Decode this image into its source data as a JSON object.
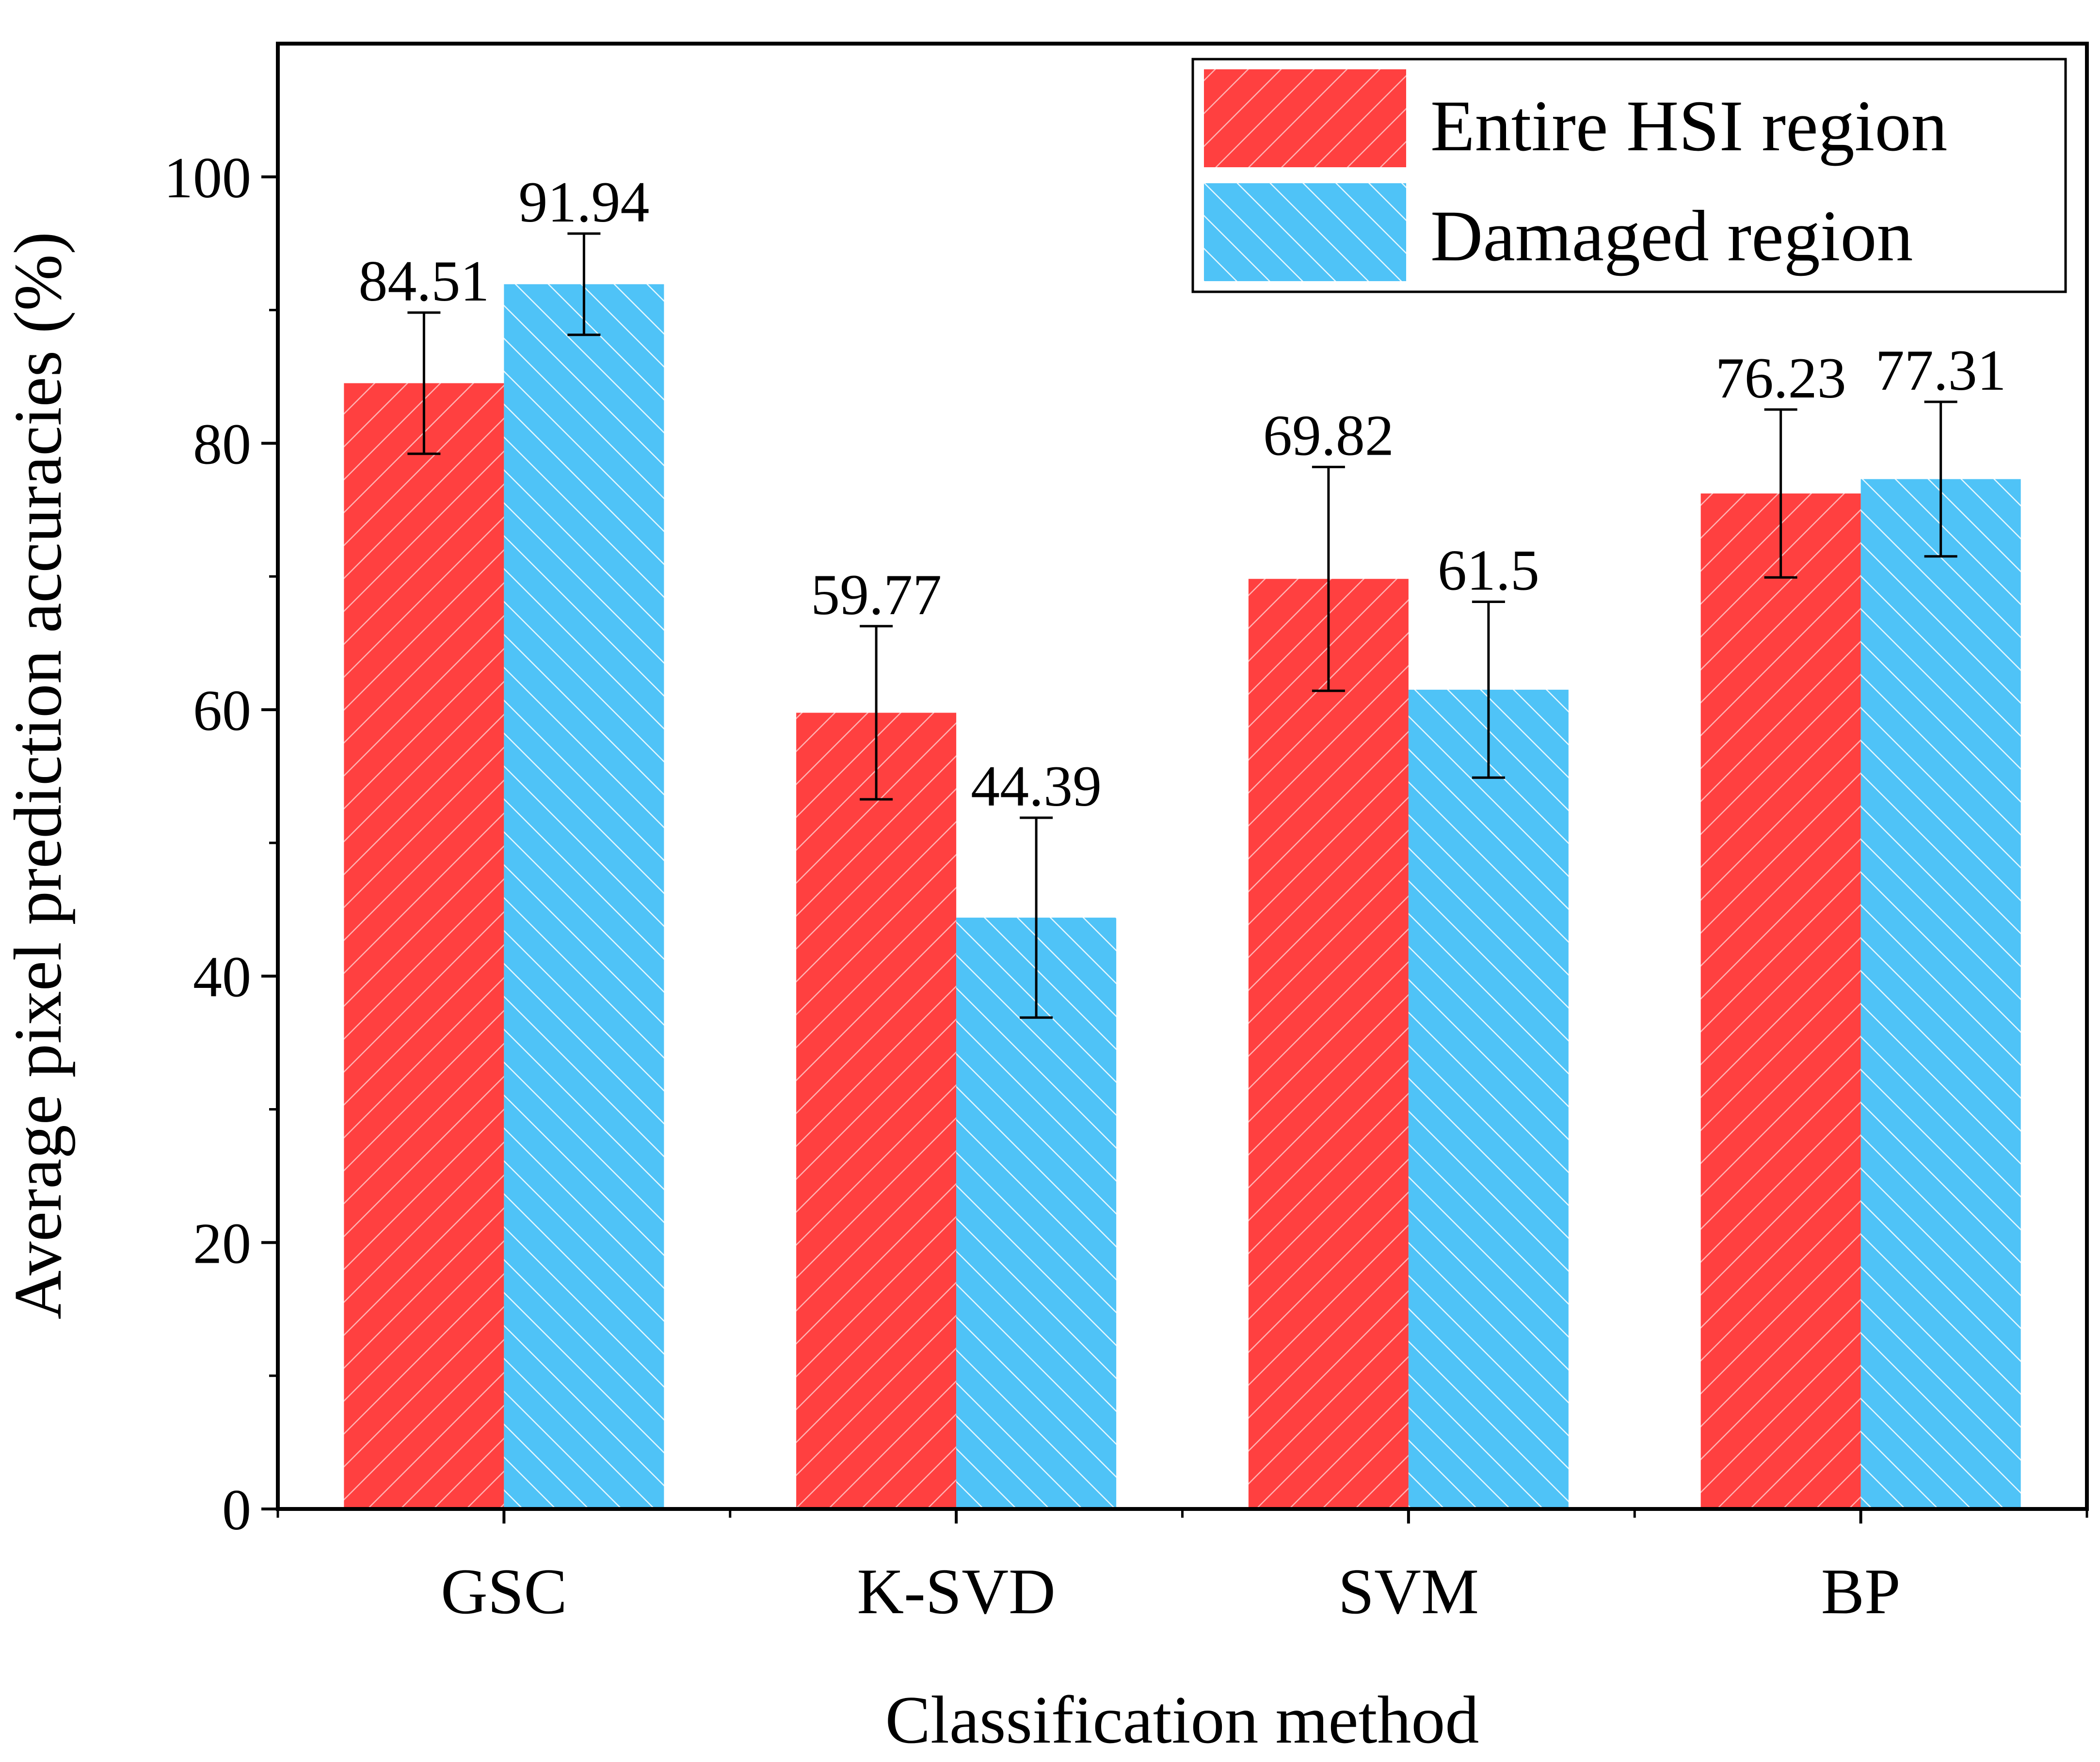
{
  "chart_data": {
    "type": "bar",
    "title": "",
    "xlabel": "Classification method",
    "ylabel": "Average pixel prediction accuracies (%)",
    "ylim": [
      0,
      110
    ],
    "yticks": [
      0,
      20,
      40,
      60,
      80,
      100
    ],
    "grid": false,
    "legend_position": "top-right",
    "categories": [
      "GSC",
      "K-SVD",
      "SVM",
      "BP"
    ],
    "series": [
      {
        "name": "Entire HSI region",
        "color": "#FF4040",
        "hatch_color": "#FFB3B3",
        "values": [
          84.51,
          59.77,
          69.82,
          76.23
        ],
        "labels": [
          "84.51",
          "59.77",
          "69.82",
          "76.23"
        ],
        "errors": [
          5.3,
          6.5,
          8.4,
          6.3
        ]
      },
      {
        "name": "Damaged region",
        "color": "#4FC3F7",
        "hatch_color": "#E6F7FE",
        "values": [
          91.94,
          44.39,
          61.5,
          77.31
        ],
        "labels": [
          "91.94",
          "44.39",
          "61.5",
          "77.31"
        ],
        "errors": [
          3.8,
          7.5,
          6.6,
          5.8
        ]
      }
    ]
  }
}
